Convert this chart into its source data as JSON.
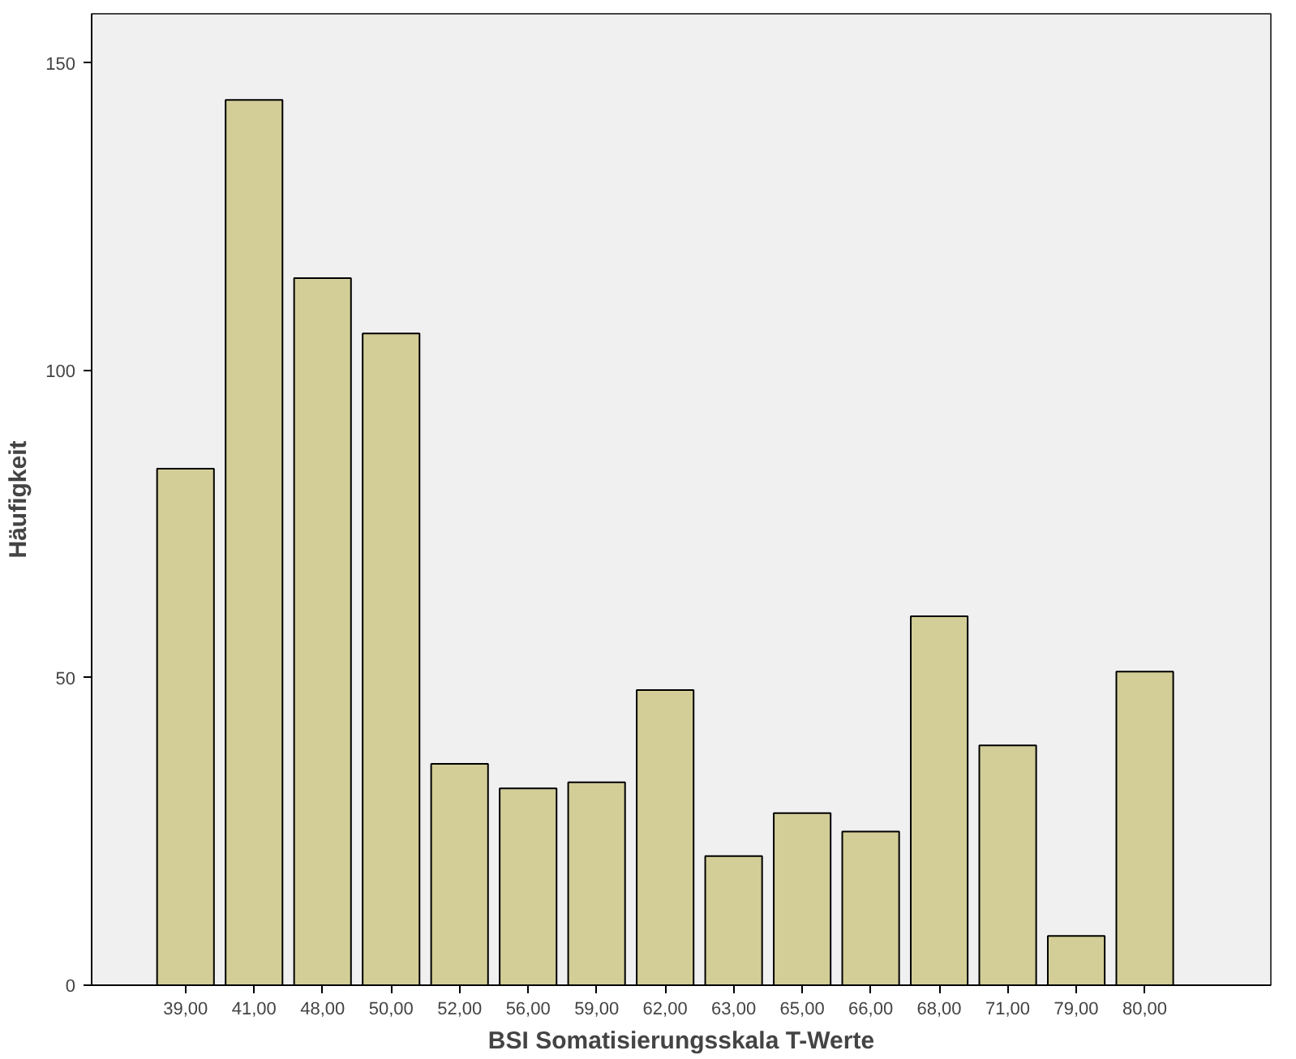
{
  "chart_data": {
    "type": "bar",
    "xlabel": "BSI Somatisierungsskala T-Werte",
    "ylabel": "Häufigkeit",
    "categories": [
      "39,00",
      "41,00",
      "48,00",
      "50,00",
      "52,00",
      "56,00",
      "59,00",
      "62,00",
      "63,00",
      "65,00",
      "66,00",
      "68,00",
      "71,00",
      "79,00",
      "80,00"
    ],
    "values": [
      84,
      144,
      115,
      106,
      36,
      32,
      33,
      48,
      21,
      28,
      25,
      60,
      39,
      8,
      51
    ],
    "color": "#d3ce97",
    "ylim": [
      0,
      158
    ],
    "yticks": [
      0,
      50,
      100,
      150
    ],
    "grid": false
  }
}
